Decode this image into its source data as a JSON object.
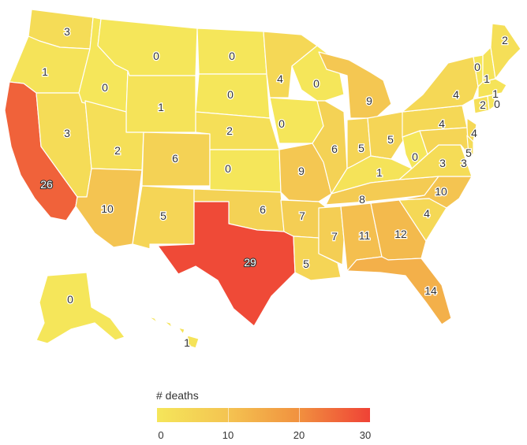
{
  "legend": {
    "title": "# deaths",
    "min": 0,
    "max": 30,
    "ticks": [
      "0",
      "10",
      "20",
      "30"
    ],
    "colors": [
      "#f5e65a",
      "#f4c451",
      "#f1923f",
      "#ef4236"
    ]
  },
  "states": [
    {
      "id": "WA",
      "deaths": 3
    },
    {
      "id": "OR",
      "deaths": 1
    },
    {
      "id": "CA",
      "deaths": 26
    },
    {
      "id": "NV",
      "deaths": 3
    },
    {
      "id": "ID",
      "deaths": 0
    },
    {
      "id": "MT",
      "deaths": 0
    },
    {
      "id": "WY",
      "deaths": 1
    },
    {
      "id": "UT",
      "deaths": 2
    },
    {
      "id": "AZ",
      "deaths": 10
    },
    {
      "id": "CO",
      "deaths": 6
    },
    {
      "id": "NM",
      "deaths": 5
    },
    {
      "id": "ND",
      "deaths": 0
    },
    {
      "id": "SD",
      "deaths": 0
    },
    {
      "id": "NE",
      "deaths": 2
    },
    {
      "id": "KS",
      "deaths": 0
    },
    {
      "id": "OK",
      "deaths": 6
    },
    {
      "id": "TX",
      "deaths": 29
    },
    {
      "id": "MN",
      "deaths": 4
    },
    {
      "id": "IA",
      "deaths": 0
    },
    {
      "id": "MO",
      "deaths": 9
    },
    {
      "id": "AR",
      "deaths": 7
    },
    {
      "id": "LA",
      "deaths": 5
    },
    {
      "id": "WI",
      "deaths": 0
    },
    {
      "id": "IL",
      "deaths": 6
    },
    {
      "id": "MI",
      "deaths": 9
    },
    {
      "id": "IN",
      "deaths": 5
    },
    {
      "id": "OH",
      "deaths": 5
    },
    {
      "id": "KY",
      "deaths": 1
    },
    {
      "id": "TN",
      "deaths": 8
    },
    {
      "id": "MS",
      "deaths": 7
    },
    {
      "id": "AL",
      "deaths": 11
    },
    {
      "id": "GA",
      "deaths": 12
    },
    {
      "id": "FL",
      "deaths": 14
    },
    {
      "id": "SC",
      "deaths": 4
    },
    {
      "id": "NC",
      "deaths": 10
    },
    {
      "id": "VA",
      "deaths": 3
    },
    {
      "id": "WV",
      "deaths": 0
    },
    {
      "id": "PA",
      "deaths": 4
    },
    {
      "id": "NY",
      "deaths": 4
    },
    {
      "id": "NJ",
      "deaths": 4
    },
    {
      "id": "MD",
      "deaths": 5
    },
    {
      "id": "DE",
      "deaths": 3
    },
    {
      "id": "VT",
      "deaths": 0
    },
    {
      "id": "NH",
      "deaths": 1
    },
    {
      "id": "MA",
      "deaths": 1
    },
    {
      "id": "CT",
      "deaths": 2
    },
    {
      "id": "RI",
      "deaths": 0
    },
    {
      "id": "ME",
      "deaths": 2
    },
    {
      "id": "AK",
      "deaths": 0
    },
    {
      "id": "HI",
      "deaths": 1
    }
  ]
}
